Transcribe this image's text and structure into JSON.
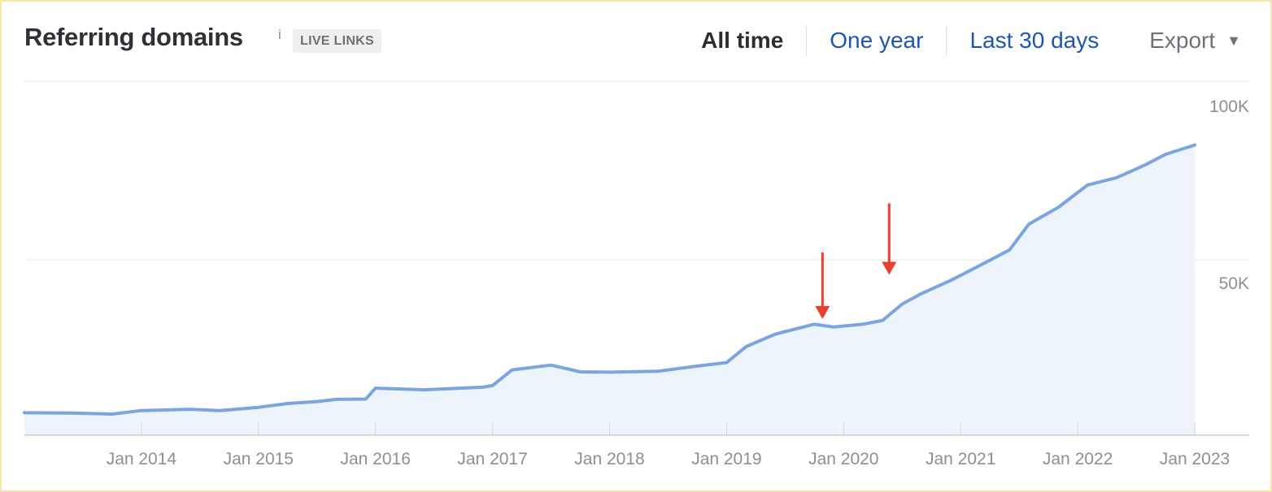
{
  "header": {
    "title": "Referring domains",
    "info_label": "i",
    "badge": "LIVE LINKS",
    "ranges": [
      "All time",
      "One year",
      "Last 30 days"
    ],
    "active_range": "All time",
    "export_label": "Export",
    "export_icon": "caret-down-icon"
  },
  "colors": {
    "line": "#7aa5de",
    "area": "#eef4fc",
    "annotation_arrow": "#e8412b",
    "link": "#1d57ad",
    "grid": "#e3e5e8"
  },
  "chart_data": {
    "type": "area",
    "title": "Referring domains",
    "xlabel": "",
    "ylabel": "",
    "x_ticks": [
      "Jan 2014",
      "Jan 2015",
      "Jan 2016",
      "Jan 2017",
      "Jan 2018",
      "Jan 2019",
      "Jan 2020",
      "Jan 2021",
      "Jan 2022",
      "Jan 2023"
    ],
    "y_ticks": [
      "50K",
      "100K"
    ],
    "y_tick_values": [
      50000,
      100000
    ],
    "ylim": [
      0,
      100000
    ],
    "xlim": [
      "2013-01",
      "2023-01"
    ],
    "grid": true,
    "series": [
      {
        "points": [
          [
            "2013-01",
            7000
          ],
          [
            "2013-06",
            6900
          ],
          [
            "2013-10",
            6600
          ],
          [
            "2014-01",
            7700
          ],
          [
            "2014-06",
            8100
          ],
          [
            "2014-09",
            7700
          ],
          [
            "2015-01",
            8700
          ],
          [
            "2015-04",
            9900
          ],
          [
            "2015-07",
            10500
          ],
          [
            "2015-09",
            11200
          ],
          [
            "2015-12",
            11300
          ],
          [
            "2016-01",
            14700
          ],
          [
            "2016-06",
            14200
          ],
          [
            "2016-12",
            15000
          ],
          [
            "2017-01",
            15500
          ],
          [
            "2017-03",
            20400
          ],
          [
            "2017-07",
            21900
          ],
          [
            "2017-10",
            19800
          ],
          [
            "2018-01",
            19700
          ],
          [
            "2018-06",
            20000
          ],
          [
            "2018-10",
            21600
          ],
          [
            "2019-01",
            22700
          ],
          [
            "2019-03",
            27700
          ],
          [
            "2019-06",
            31600
          ],
          [
            "2019-10",
            34700
          ],
          [
            "2019-12",
            33800
          ],
          [
            "2020-03",
            34700
          ],
          [
            "2020-05",
            35900
          ],
          [
            "2020-07",
            41000
          ],
          [
            "2020-09",
            44300
          ],
          [
            "2020-12",
            48400
          ],
          [
            "2021-03",
            53100
          ],
          [
            "2021-06",
            57900
          ],
          [
            "2021-08",
            66000
          ],
          [
            "2021-11",
            71200
          ],
          [
            "2022-02",
            78200
          ],
          [
            "2022-05",
            80500
          ],
          [
            "2022-08",
            84600
          ],
          [
            "2022-10",
            87800
          ],
          [
            "2023-01",
            90700
          ]
        ]
      }
    ],
    "annotations": [
      {
        "type": "arrow-down",
        "at_x": "2019-12",
        "value": 33800
      },
      {
        "type": "arrow-down",
        "at_x": "2020-08",
        "value": 44300
      }
    ]
  }
}
